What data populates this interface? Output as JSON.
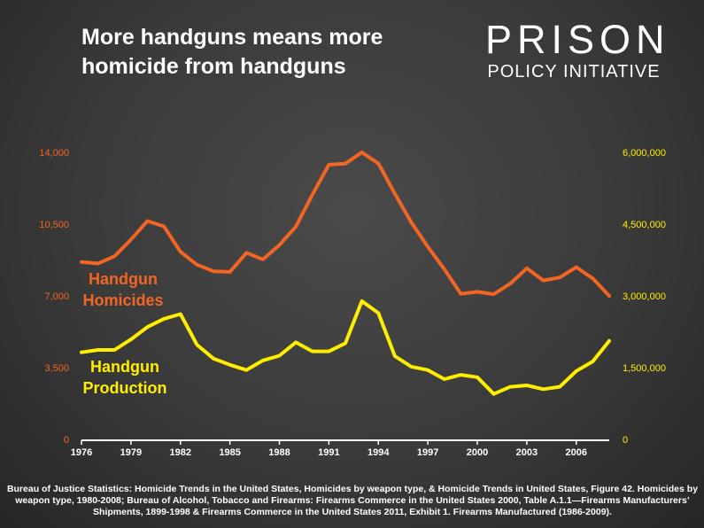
{
  "title": "More handguns means more homicide from handguns",
  "logo": {
    "line1": "PRISON",
    "line2": "POLICY INITIATIVE"
  },
  "source": "Bureau of Justice Statistics: Homicide Trends in the United States, Homicides by weapon type, & Homicide Trends in United States, Figure 42. Homicides by weapon type, 1980-2008; Bureau of Alcohol, Tobacco and Firearms: Firearms Commerce in the United States 2000, Table A.1.1—Firearms Manufacturers’ Shipments, 1899-1998 & Firearms Commerce in the United States 2011, Exhibit 1. Firearms Manufactured (1986-2009).",
  "colors": {
    "homicides": "#f26522",
    "production": "#ffee00",
    "axis": "#ffffff"
  },
  "chart_data": {
    "type": "line",
    "title": "More handguns means more homicide from handguns",
    "x": [
      1976,
      1977,
      1978,
      1979,
      1980,
      1981,
      1982,
      1983,
      1984,
      1985,
      1986,
      1987,
      1988,
      1989,
      1990,
      1991,
      1992,
      1993,
      1994,
      1995,
      1996,
      1997,
      1998,
      1999,
      2000,
      2001,
      2002,
      2003,
      2004,
      2005,
      2006,
      2007,
      2008
    ],
    "x_ticks": [
      "1976",
      "1979",
      "1982",
      "1985",
      "1988",
      "1991",
      "1994",
      "1997",
      "2000",
      "2003",
      "2006"
    ],
    "x_tick_values": [
      1976,
      1979,
      1982,
      1985,
      1988,
      1991,
      1994,
      1997,
      2000,
      2003,
      2006
    ],
    "xlim": [
      1976,
      2008
    ],
    "y_left": {
      "ticks": [
        "0",
        "3,500",
        "7,000",
        "10,500",
        "14,000"
      ],
      "tick_values": [
        0,
        3500,
        7000,
        10500,
        14000
      ],
      "ylim": [
        0,
        14000
      ]
    },
    "y_right": {
      "ticks": [
        "0",
        "1,500,000",
        "3,000,000",
        "4,500,000",
        "6,000,000"
      ],
      "tick_values": [
        0,
        1500000,
        3000000,
        4500000,
        6000000
      ],
      "ylim": [
        0,
        6000000
      ]
    },
    "series": [
      {
        "name": "Handgun Homicides",
        "label_line1": "Handgun",
        "label_line2": "Homicides",
        "axis": "left",
        "values": [
          8650,
          8580,
          8930,
          9750,
          10650,
          10390,
          9150,
          8520,
          8200,
          8170,
          9100,
          8780,
          9480,
          10380,
          11940,
          13400,
          13450,
          14000,
          13460,
          11980,
          10580,
          9400,
          8300,
          7100,
          7200,
          7080,
          7600,
          8350,
          7750,
          7900,
          8400,
          7850,
          7000
        ]
      },
      {
        "name": "Handgun Production",
        "label_line1": "Handgun",
        "label_line2": "Production",
        "axis": "right",
        "values": [
          1820000,
          1870000,
          1870000,
          2090000,
          2350000,
          2520000,
          2620000,
          1980000,
          1690000,
          1560000,
          1450000,
          1650000,
          1750000,
          2030000,
          1840000,
          1840000,
          2010000,
          2890000,
          2640000,
          1740000,
          1520000,
          1450000,
          1260000,
          1350000,
          1300000,
          950000,
          1100000,
          1130000,
          1050000,
          1100000,
          1430000,
          1630000,
          2060000
        ]
      }
    ]
  }
}
